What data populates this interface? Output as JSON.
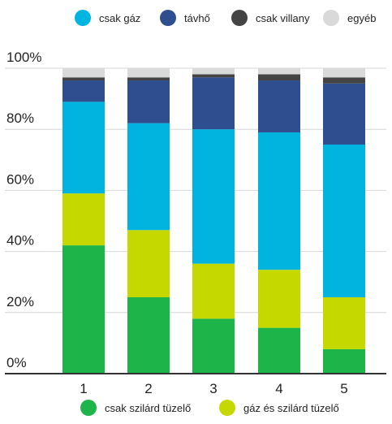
{
  "chart_data": {
    "type": "bar",
    "stacked": true,
    "categories": [
      "1",
      "2",
      "3",
      "4",
      "5"
    ],
    "ylim": [
      0,
      100
    ],
    "y_ticks": [
      "0%",
      "20%",
      "40%",
      "60%",
      "80%",
      "100%"
    ],
    "grid": true,
    "series": [
      {
        "name": "csak szilárd tüzelő",
        "color": "#1db54a",
        "values": [
          42,
          25,
          18,
          15,
          8
        ]
      },
      {
        "name": "gáz és szilárd tüzelő",
        "color": "#c5d900",
        "values": [
          17,
          22,
          18,
          19,
          17
        ]
      },
      {
        "name": "csak gáz",
        "color": "#00b4e0",
        "values": [
          30,
          35,
          44,
          45,
          50
        ]
      },
      {
        "name": "távhő",
        "color": "#2e4e8f",
        "values": [
          7,
          14,
          17,
          17,
          20
        ]
      },
      {
        "name": "csak villany",
        "color": "#444444",
        "values": [
          1,
          1,
          1,
          2,
          2
        ]
      },
      {
        "name": "egyéb",
        "color": "#d9d9d9",
        "values": [
          3,
          3,
          2,
          2,
          3
        ]
      }
    ]
  }
}
